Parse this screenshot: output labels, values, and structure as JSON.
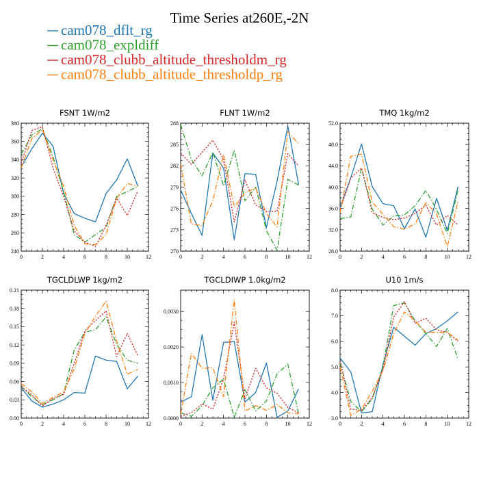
{
  "figure": {
    "title": "Time Series at260E,-2N",
    "legend": [
      {
        "name": "cam078_dflt_rg",
        "color": "#1f77b4",
        "dash": "solid"
      },
      {
        "name": "cam078_expldiff",
        "color": "#2ca02c",
        "dash": "dashdot"
      },
      {
        "name": "cam078_clubb_altitude_thresholdm_rg",
        "color": "#d62728",
        "dash": "dotted"
      },
      {
        "name": "cam078_clubb_altitude_thresholdp_rg",
        "color": "#ff7f0e",
        "dash": "dashdot"
      }
    ]
  },
  "chart_data": [
    {
      "type": "line",
      "title": "FSNT  1W/m2",
      "xlim": [
        0,
        12
      ],
      "ylim": [
        240,
        380
      ],
      "xticks": [
        0,
        2,
        4,
        6,
        8,
        10,
        12
      ],
      "yticks": [
        240,
        260,
        280,
        300,
        320,
        340,
        360,
        380
      ],
      "ytick_labels": [
        "240",
        "260",
        "280",
        "300",
        "320",
        "340",
        "360",
        "380"
      ],
      "x": [
        0,
        1,
        2,
        3,
        4,
        5,
        6,
        7,
        8,
        9,
        10,
        11
      ],
      "series": [
        {
          "name": "cam078_dflt_rg",
          "values": [
            332,
            352,
            369,
            355,
            303,
            281,
            276,
            272,
            303,
            318,
            341,
            311
          ]
        },
        {
          "name": "cam078_expldiff",
          "values": [
            346,
            367,
            374,
            343,
            305,
            258,
            250,
            258,
            266,
            300,
            305,
            311
          ]
        },
        {
          "name": "cam078_clubb_altitude_thresholdm_rg",
          "values": [
            336,
            372,
            376,
            331,
            300,
            262,
            250,
            245,
            268,
            298,
            279,
            306
          ]
        },
        {
          "name": "cam078_clubb_altitude_thresholdp_rg",
          "values": [
            331,
            363,
            373,
            340,
            311,
            268,
            248,
            247,
            258,
            298,
            314,
            311
          ]
        }
      ]
    },
    {
      "type": "line",
      "title": "FLNT  1W/m2",
      "xlim": [
        0,
        12
      ],
      "ylim": [
        270,
        288
      ],
      "xticks": [
        0,
        2,
        4,
        6,
        8,
        10,
        12
      ],
      "yticks": [
        270,
        273,
        276,
        279,
        282,
        285,
        288
      ],
      "ytick_labels": [
        "270",
        "273",
        "276",
        "279",
        "282",
        "285",
        "288"
      ],
      "x": [
        0,
        1,
        2,
        3,
        4,
        5,
        6,
        7,
        8,
        9,
        10,
        11
      ],
      "series": [
        {
          "name": "cam078_dflt_rg",
          "values": [
            278.6,
            275.3,
            272.2,
            283.8,
            281.7,
            271.6,
            280.9,
            280.8,
            273.3,
            279.9,
            287.6,
            279.4
          ]
        },
        {
          "name": "cam078_expldiff",
          "values": [
            287.8,
            282.9,
            280.6,
            283.9,
            279.2,
            284.2,
            277.1,
            279.0,
            272.9,
            270.1,
            280.1,
            279.3
          ]
        },
        {
          "name": "cam078_clubb_altitude_thresholdm_rg",
          "values": [
            283.8,
            282.2,
            283.9,
            285.6,
            282.9,
            274.1,
            280.0,
            276.5,
            275.6,
            275.6,
            283.7,
            282.0
          ]
        },
        {
          "name": "cam078_clubb_altitude_thresholdp_rg",
          "values": [
            282.3,
            273.8,
            273.6,
            277.1,
            283.6,
            276.2,
            278.2,
            278.9,
            275.3,
            273.4,
            286.8,
            285.1
          ]
        }
      ]
    },
    {
      "type": "line",
      "title": "TMQ  1kg/m2",
      "xlim": [
        0,
        12
      ],
      "ylim": [
        28,
        52
      ],
      "xticks": [
        0,
        2,
        4,
        6,
        8,
        10,
        12
      ],
      "yticks": [
        28,
        32,
        36,
        40,
        44,
        48,
        52
      ],
      "ytick_labels": [
        "28.0",
        "32.0",
        "36.0",
        "40.0",
        "44.0",
        "48.0",
        "52.0"
      ],
      "x": [
        0,
        1,
        2,
        3,
        4,
        5,
        6,
        7,
        8,
        9,
        10,
        11
      ],
      "series": [
        {
          "name": "cam078_dflt_rg",
          "values": [
            36.2,
            41.8,
            48.1,
            40.1,
            36.9,
            36.5,
            32.2,
            35.9,
            30.6,
            37.9,
            31.9,
            40.1
          ]
        },
        {
          "name": "cam078_expldiff",
          "values": [
            34.1,
            34.4,
            43.6,
            35.9,
            32.9,
            34.6,
            34.8,
            36.5,
            39.4,
            35.8,
            31.3,
            39.4
          ]
        },
        {
          "name": "cam078_clubb_altitude_thresholdm_rg",
          "values": [
            35.8,
            41.7,
            43.6,
            35.2,
            34.3,
            33.9,
            34.2,
            35.1,
            36.6,
            32.9,
            34.7,
            32.9
          ]
        },
        {
          "name": "cam078_clubb_altitude_thresholdp_rg",
          "values": [
            35.1,
            45.8,
            46.2,
            37.2,
            34.9,
            32.6,
            32.1,
            33.1,
            37.1,
            35.0,
            28.8,
            37.3
          ]
        }
      ]
    },
    {
      "type": "line",
      "title": "TGCLDLWP  1kg/m2",
      "xlim": [
        0,
        12
      ],
      "ylim": [
        0,
        0.21
      ],
      "xticks": [
        0,
        2,
        4,
        6,
        8,
        10,
        12
      ],
      "yticks": [
        0,
        0.03,
        0.06,
        0.09,
        0.12,
        0.15,
        0.18,
        0.21
      ],
      "ytick_labels": [
        "0.00",
        "0.03",
        "0.06",
        "0.09",
        "0.12",
        "0.15",
        "0.18",
        "0.21"
      ],
      "x": [
        0,
        1,
        2,
        3,
        4,
        5,
        6,
        7,
        8,
        9,
        10,
        11
      ],
      "series": [
        {
          "name": "cam078_dflt_rg",
          "values": [
            0.05,
            0.028,
            0.018,
            0.023,
            0.03,
            0.042,
            0.041,
            0.102,
            0.095,
            0.093,
            0.048,
            0.069
          ]
        },
        {
          "name": "cam078_expldiff",
          "values": [
            0.052,
            0.035,
            0.022,
            0.03,
            0.04,
            0.112,
            0.141,
            0.145,
            0.166,
            0.121,
            0.095,
            0.09
          ]
        },
        {
          "name": "cam078_clubb_altitude_thresholdm_rg",
          "values": [
            0.052,
            0.038,
            0.02,
            0.032,
            0.039,
            0.09,
            0.143,
            0.16,
            0.176,
            0.101,
            0.139,
            0.102
          ]
        },
        {
          "name": "cam078_clubb_altitude_thresholdp_rg",
          "values": [
            0.057,
            0.043,
            0.024,
            0.034,
            0.043,
            0.081,
            0.139,
            0.167,
            0.192,
            0.126,
            0.072,
            0.08
          ]
        }
      ]
    },
    {
      "type": "line",
      "title": "TGCLDIWP  1.0kg/m2",
      "xlim": [
        0,
        12
      ],
      "ylim": [
        0,
        0.0036
      ],
      "xticks": [
        0,
        2,
        4,
        6,
        8,
        10,
        12
      ],
      "yticks": [
        0,
        0.001,
        0.002,
        0.003
      ],
      "ytick_labels": [
        "0.0000",
        "0.0010",
        "0.0020",
        "0.0030"
      ],
      "x": [
        0,
        1,
        2,
        3,
        4,
        5,
        6,
        7,
        8,
        9,
        10,
        11
      ],
      "series": [
        {
          "name": "cam078_dflt_rg",
          "values": [
            0.00045,
            0.0006,
            0.00235,
            0.0005,
            0.00213,
            0.00215,
            0.00045,
            0.00072,
            0.00155,
            2e-05,
            0.0002,
            0.00082
          ]
        },
        {
          "name": "cam078_expldiff",
          "values": [
            0.00015,
            5e-05,
            0.00035,
            0.00085,
            0.0011,
            2e-05,
            0.0008,
            0.0002,
            0.00048,
            0.00125,
            0.00152,
            0.00012
          ]
        },
        {
          "name": "cam078_clubb_altitude_thresholdm_rg",
          "values": [
            5e-05,
            0.00015,
            0.0004,
            0.00025,
            0.0011,
            0.0027,
            0.00055,
            0.0014,
            0.00085,
            0.0007,
            0.0003,
            0.00015
          ]
        },
        {
          "name": "cam078_clubb_altitude_thresholdp_rg",
          "values": [
            0.0001,
            0.00182,
            0.0014,
            0.00142,
            0.0006,
            0.00333,
            0.0002,
            0.00035,
            0.00022,
            0.00038,
            0.00015,
            0.00012
          ]
        }
      ]
    },
    {
      "type": "line",
      "title": "U10  1m/s",
      "xlim": [
        0,
        12
      ],
      "ylim": [
        3,
        8
      ],
      "xticks": [
        0,
        2,
        4,
        6,
        8,
        10,
        12
      ],
      "yticks": [
        3,
        4,
        5,
        6,
        7,
        8
      ],
      "ytick_labels": [
        "3.0",
        "4.0",
        "5.0",
        "6.0",
        "7.0",
        "8.0"
      ],
      "x": [
        0,
        1,
        2,
        3,
        4,
        5,
        6,
        7,
        8,
        9,
        10,
        11
      ],
      "series": [
        {
          "name": "cam078_dflt_rg",
          "values": [
            5.35,
            4.8,
            3.2,
            3.25,
            5.1,
            6.55,
            6.2,
            5.85,
            6.3,
            6.5,
            6.8,
            7.15
          ]
        },
        {
          "name": "cam078_expldiff",
          "values": [
            5.15,
            3.65,
            3.25,
            3.75,
            5.0,
            7.4,
            7.5,
            6.8,
            6.3,
            5.8,
            6.5,
            5.3
          ]
        },
        {
          "name": "cam078_clubb_altitude_thresholdm_rg",
          "values": [
            5.25,
            3.35,
            3.3,
            3.8,
            4.9,
            6.95,
            7.55,
            6.7,
            6.9,
            6.45,
            6.35,
            6.0
          ]
        },
        {
          "name": "cam078_clubb_altitude_thresholdp_rg",
          "values": [
            5.0,
            3.1,
            3.35,
            4.05,
            4.85,
            6.3,
            7.15,
            6.8,
            6.35,
            6.35,
            6.35,
            6.05
          ]
        }
      ]
    }
  ]
}
